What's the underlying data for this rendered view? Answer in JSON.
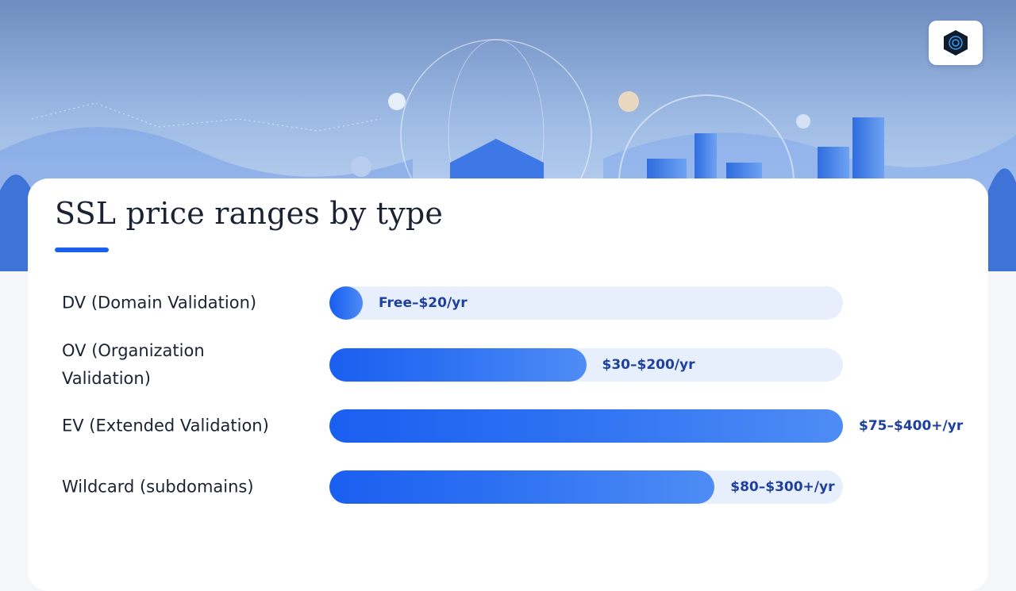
{
  "chart_data": {
    "type": "bar",
    "title": "SSL price ranges by type",
    "categories": [
      "DV (Domain Validation)",
      "OV (Organization Validation)",
      "EV (Extended Validation)",
      "Wildcard (subdomains)"
    ],
    "values": [
      20,
      200,
      400,
      300
    ],
    "value_labels": [
      "Free–$20/yr",
      "$30–$200/yr",
      "$75–$400+/yr",
      "$80–$300+/yr"
    ],
    "xlim": [
      0,
      400
    ],
    "color": "#2a6ff2"
  }
}
